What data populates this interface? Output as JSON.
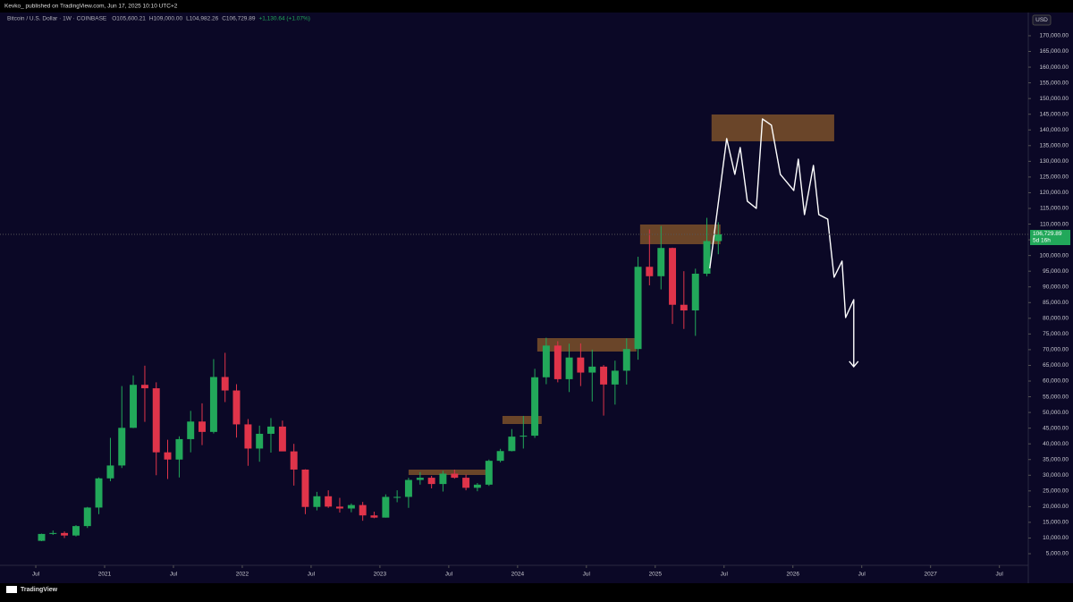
{
  "header": {
    "byline": "Kevko_ published on TradingView.com, Jun 17, 2025 10:10 UTC+2",
    "symbol": "Bitcoin / U.S. Dollar · 1W · COINBASE",
    "ohlc_legend": [
      "O105,600.21",
      "H109,000.00",
      "L104,982.26",
      "C106,729.89",
      "+1,130.64 (+1.07%)"
    ],
    "currency": "USD",
    "brand": "TradingView"
  },
  "chart_data": {
    "type": "candlestick",
    "grid": false,
    "up_color": "#22a85a",
    "down_color": "#e0344a",
    "x": [
      2020.542,
      2020.625,
      2020.708,
      2020.792,
      2020.875,
      2020.958,
      2021.042,
      2021.125,
      2021.208,
      2021.292,
      2021.375,
      2021.458,
      2021.542,
      2021.625,
      2021.708,
      2021.792,
      2021.875,
      2021.958,
      2022.042,
      2022.125,
      2022.208,
      2022.292,
      2022.375,
      2022.458,
      2022.542,
      2022.625,
      2022.708,
      2022.792,
      2022.875,
      2022.958,
      2023.042,
      2023.125,
      2023.208,
      2023.292,
      2023.375,
      2023.458,
      2023.542,
      2023.625,
      2023.708,
      2023.792,
      2023.875,
      2023.958,
      2024.042,
      2024.125,
      2024.208,
      2024.292,
      2024.375,
      2024.458,
      2024.542,
      2024.625,
      2024.708,
      2024.792,
      2024.875,
      2024.958,
      2025.042,
      2025.125,
      2025.208,
      2025.292,
      2025.375,
      2025.458
    ],
    "open": [
      9100,
      11300,
      11600,
      10800,
      13800,
      19700,
      29000,
      33100,
      45100,
      58800,
      57700,
      37300,
      35000,
      41500,
      47100,
      43800,
      61300,
      57000,
      46200,
      38500,
      43200,
      45500,
      37600,
      31800,
      19900,
      23300,
      20000,
      19400,
      20500,
      17200,
      16500,
      23100,
      23100,
      28500,
      29200,
      27200,
      30500,
      29200,
      26000,
      27000,
      34600,
      37700,
      42300,
      42600,
      61200,
      71300,
      60600,
      67500,
      62700,
      64600,
      58900,
      63300,
      70200,
      96400,
      93400,
      102400,
      84300,
      82500,
      94200,
      104600
    ],
    "high": [
      11400,
      12400,
      12100,
      14100,
      19900,
      29300,
      41900,
      58400,
      61800,
      64900,
      59600,
      41300,
      42400,
      50500,
      52900,
      67000,
      69000,
      59000,
      47900,
      45800,
      48200,
      47400,
      40000,
      31900,
      24700,
      25200,
      22800,
      21000,
      21500,
      18400,
      23900,
      25200,
      29200,
      31000,
      29800,
      31400,
      31800,
      30200,
      27500,
      35000,
      38400,
      44700,
      48900,
      63900,
      73800,
      72700,
      71900,
      72000,
      70000,
      65100,
      66500,
      73600,
      99600,
      108300,
      109400,
      102500,
      95000,
      95800,
      112000,
      110600
    ],
    "low": [
      9000,
      11000,
      10000,
      10500,
      13200,
      17600,
      28100,
      32300,
      45000,
      47000,
      30000,
      28800,
      29300,
      37300,
      39600,
      43300,
      53300,
      42000,
      33000,
      34300,
      37200,
      37700,
      26700,
      17600,
      18800,
      19600,
      18100,
      18200,
      15500,
      16300,
      16500,
      21400,
      19600,
      27000,
      25800,
      24800,
      28900,
      25200,
      24900,
      26600,
      34100,
      37600,
      38500,
      41900,
      59000,
      59600,
      56500,
      58400,
      53500,
      49000,
      52500,
      58900,
      66800,
      90500,
      89200,
      78200,
      76600,
      74400,
      93400,
      100400
    ],
    "close": [
      11300,
      11600,
      10800,
      13800,
      19700,
      29000,
      33100,
      45100,
      58800,
      57700,
      37300,
      35000,
      41500,
      47100,
      43800,
      61300,
      57000,
      46200,
      38500,
      43200,
      45500,
      37600,
      31800,
      19900,
      23300,
      20000,
      19400,
      20500,
      17200,
      16500,
      23100,
      23100,
      28500,
      29200,
      27200,
      30500,
      29200,
      26000,
      27000,
      34600,
      37700,
      42300,
      42600,
      61200,
      71300,
      60600,
      67500,
      62700,
      64600,
      58900,
      63300,
      70200,
      96400,
      93400,
      102400,
      84300,
      82500,
      94200,
      104600,
      106729.89
    ],
    "xlim": [
      2020.24,
      2027.71
    ],
    "xticks": [
      {
        "value": 2020.5,
        "label": "Jul"
      },
      2021,
      {
        "value": 2021.5,
        "label": "Jul"
      },
      2022,
      {
        "value": 2022.5,
        "label": "Jul"
      },
      2023,
      {
        "value": 2023.5,
        "label": "Jul"
      },
      2024,
      {
        "value": 2024.5,
        "label": "Jul"
      },
      2025,
      {
        "value": 2025.5,
        "label": "Jul"
      },
      2026,
      {
        "value": 2026.5,
        "label": "Jul"
      },
      2027,
      {
        "value": 2027.5,
        "label": "Jul"
      }
    ],
    "ylim": [
      1300,
      177400
    ],
    "yticks": [
      {
        "value": 5000,
        "label": "5,000.00"
      },
      {
        "value": 10000,
        "label": "10,000.00"
      },
      {
        "value": 15000,
        "label": "15,000.00"
      },
      {
        "value": 20000,
        "label": "20,000.00"
      },
      {
        "value": 25000,
        "label": "25,000.00"
      },
      {
        "value": 30000,
        "label": "30,000.00"
      },
      {
        "value": 35000,
        "label": "35,000.00"
      },
      {
        "value": 40000,
        "label": "40,000.00"
      },
      {
        "value": 45000,
        "label": "45,000.00"
      },
      {
        "value": 50000,
        "label": "50,000.00"
      },
      {
        "value": 55000,
        "label": "55,000.00"
      },
      {
        "value": 60000,
        "label": "60,000.00"
      },
      {
        "value": 65000,
        "label": "65,000.00"
      },
      {
        "value": 70000,
        "label": "70,000.00"
      },
      {
        "value": 75000,
        "label": "75,000.00"
      },
      {
        "value": 80000,
        "label": "80,000.00"
      },
      {
        "value": 85000,
        "label": "85,000.00"
      },
      {
        "value": 90000,
        "label": "90,000.00"
      },
      {
        "value": 95000,
        "label": "95,000.00"
      },
      {
        "value": 100000,
        "label": "100,000.00"
      },
      {
        "value": 105000,
        "label": "105,000.00"
      },
      {
        "value": 110000,
        "label": "110,000.00"
      },
      {
        "value": 115000,
        "label": "115,000.00"
      },
      {
        "value": 120000,
        "label": "120,000.00"
      },
      {
        "value": 125000,
        "label": "125,000.00"
      },
      {
        "value": 130000,
        "label": "130,000.00"
      },
      {
        "value": 135000,
        "label": "135,000.00"
      },
      {
        "value": 140000,
        "label": "140,000.00"
      },
      {
        "value": 145000,
        "label": "145,000.00"
      },
      {
        "value": 150000,
        "label": "150,000.00"
      },
      {
        "value": 155000,
        "label": "155,000.00"
      },
      {
        "value": 160000,
        "label": "160,000.00"
      },
      {
        "value": 165000,
        "label": "165,000.00"
      },
      {
        "value": 170000,
        "label": "170,000.00"
      }
    ],
    "last_price": {
      "value": 106729.89,
      "label": "106,729.89",
      "countdown": "5d 16h",
      "color": "#22a85a"
    },
    "zone_color": "#8b5a2b",
    "zones": [
      {
        "x": [
          2023.208,
          2023.779
        ],
        "values": [
          30080,
          31790
        ]
      },
      {
        "x": [
          2023.89,
          2024.175
        ],
        "values": [
          46320,
          48890
        ]
      },
      {
        "x": [
          2024.143,
          2024.864
        ],
        "values": [
          69400,
          73680
        ]
      },
      {
        "x": [
          2024.89,
          2025.474
        ],
        "values": [
          103600,
          109870
        ]
      },
      {
        "x": [
          2025.409,
          2026.3
        ],
        "values": [
          136380,
          144920
        ]
      }
    ],
    "projection": {
      "color": "#ffffff",
      "x": [
        2025.396,
        2025.519,
        2025.578,
        2025.617,
        2025.669,
        2025.734,
        2025.779,
        2025.844,
        2025.909,
        2026.006,
        2026.039,
        2026.084,
        2026.149,
        2026.188,
        2026.253,
        2026.299,
        2026.357,
        2026.383,
        2026.442,
        2026.442
      ],
      "values": [
        95900,
        137240,
        125840,
        134390,
        117290,
        115010,
        143510,
        141520,
        125840,
        120710,
        130690,
        113020,
        128690,
        113020,
        111590,
        93070,
        98200,
        80240,
        85940,
        64570
      ]
    }
  }
}
